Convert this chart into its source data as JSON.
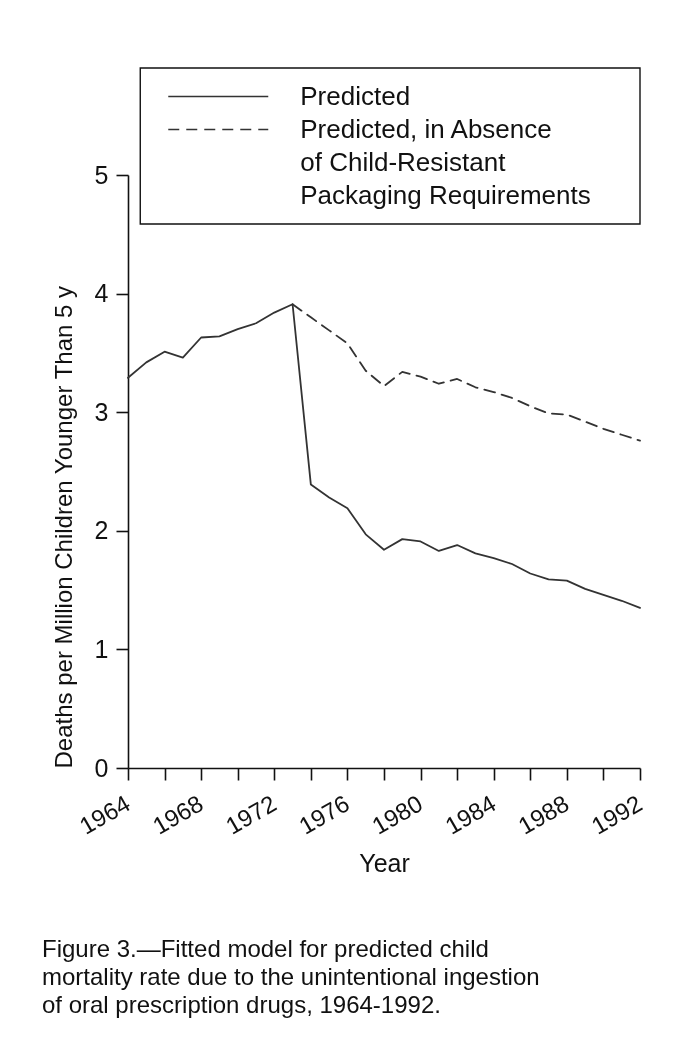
{
  "chart_data": {
    "type": "line",
    "xlabel": "Year",
    "ylabel": "Deaths per Million Children Younger Than 5 y",
    "annotations": [
      "Figure 3.—Fitted model for predicted child mortality rate due to the unintentional ingestion of oral prescription drugs, 1964-1992."
    ],
    "xlim": [
      1964,
      1992
    ],
    "xticks": [
      1964,
      {
        "value": 1966,
        "label": null
      },
      1968,
      {
        "value": 1970,
        "label": null
      },
      1972,
      {
        "value": 1974,
        "label": null
      },
      1976,
      {
        "value": 1978,
        "label": null
      },
      1980,
      {
        "value": 1982,
        "label": null
      },
      1984,
      {
        "value": 1986,
        "label": null
      },
      1988,
      {
        "value": 1990,
        "label": null
      },
      1992
    ],
    "ylim": [
      0,
      5
    ],
    "yticks": [
      0,
      1,
      2,
      3,
      4,
      5
    ],
    "legend": "top right",
    "series": [
      {
        "name": "Predicted",
        "color": "#333333",
        "line_style": "solid",
        "x": [
          1964,
          1965,
          1966,
          1967,
          1968,
          1969,
          1970,
          1971,
          1972,
          1973,
          1974,
          1975,
          1976,
          1977,
          1978,
          1979,
          1980,
          1981,
          1982,
          1983,
          1984,
          1985,
          1986,
          1987,
          1988,
          1989,
          1990,
          1991,
          1992
        ],
        "values": [
          3.29,
          3.42,
          3.51,
          3.46,
          3.63,
          3.64,
          3.7,
          3.75,
          3.84,
          3.91,
          2.39,
          2.28,
          2.19,
          1.97,
          1.84,
          1.93,
          1.91,
          1.83,
          1.88,
          1.81,
          1.77,
          1.72,
          1.64,
          1.59,
          1.58,
          1.51,
          1.46,
          1.41,
          1.35
        ]
      },
      {
        "name": "Predicted, in Absence of Child-Resistant Packaging Requirements",
        "color": "#333333",
        "line_style": "dashed",
        "x": [
          1973,
          1974,
          1975,
          1976,
          1977,
          1978,
          1979,
          1980,
          1981,
          1982,
          1983,
          1984,
          1985,
          1986,
          1987,
          1988,
          1989,
          1990,
          1991,
          1992
        ],
        "values": [
          3.91,
          3.8,
          3.69,
          3.58,
          3.35,
          3.22,
          3.34,
          3.3,
          3.24,
          3.28,
          3.21,
          3.17,
          3.12,
          3.05,
          2.99,
          2.98,
          2.92,
          2.86,
          2.81,
          2.76
        ]
      }
    ]
  }
}
